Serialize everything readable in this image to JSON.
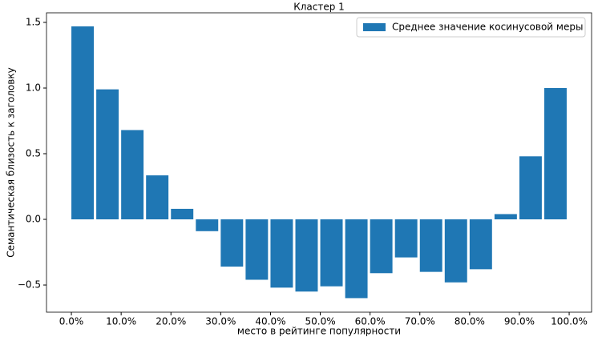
{
  "chart_data": {
    "type": "bar",
    "title": "Кластер 1",
    "xlabel": "место в рейтинге популярности",
    "ylabel": "Семантическая близость к заголовку",
    "x": [
      0,
      5,
      10,
      15,
      20,
      25,
      30,
      35,
      40,
      45,
      50,
      55,
      60,
      65,
      70,
      75,
      80,
      85,
      90,
      95
    ],
    "series": [
      {
        "name": "Среднее значение косинусовой меры",
        "color": "#1f77b4",
        "values": [
          1.47,
          0.99,
          0.68,
          0.335,
          0.08,
          -0.09,
          -0.36,
          -0.46,
          -0.52,
          -0.55,
          -0.51,
          -0.6,
          -0.41,
          -0.29,
          -0.4,
          -0.48,
          -0.38,
          0.04,
          0.48,
          1.0
        ]
      }
    ],
    "xlim": [
      -5,
      104.5
    ],
    "ylim": [
      -0.707,
      1.573
    ],
    "xticks": [
      {
        "value": 0,
        "label": "0.0%"
      },
      {
        "value": 10,
        "label": "10.0%"
      },
      {
        "value": 20,
        "label": "20.0%"
      },
      {
        "value": 30,
        "label": "30.0%"
      },
      {
        "value": 40,
        "label": "40.0%"
      },
      {
        "value": 50,
        "label": "50.0%"
      },
      {
        "value": 60,
        "label": "60.0%"
      },
      {
        "value": 70,
        "label": "70.0%"
      },
      {
        "value": 80,
        "label": "80.0%"
      },
      {
        "value": 90,
        "label": "90.0%"
      },
      {
        "value": 100,
        "label": "100.0%"
      }
    ],
    "yticks": [
      {
        "value": -0.5,
        "label": "−0.5"
      },
      {
        "value": 0,
        "label": "0.0"
      },
      {
        "value": 0.5,
        "label": "0.5"
      },
      {
        "value": 1,
        "label": "1.0"
      },
      {
        "value": 1.5,
        "label": "1.5"
      }
    ],
    "legend": "upper right",
    "grid": false
  }
}
